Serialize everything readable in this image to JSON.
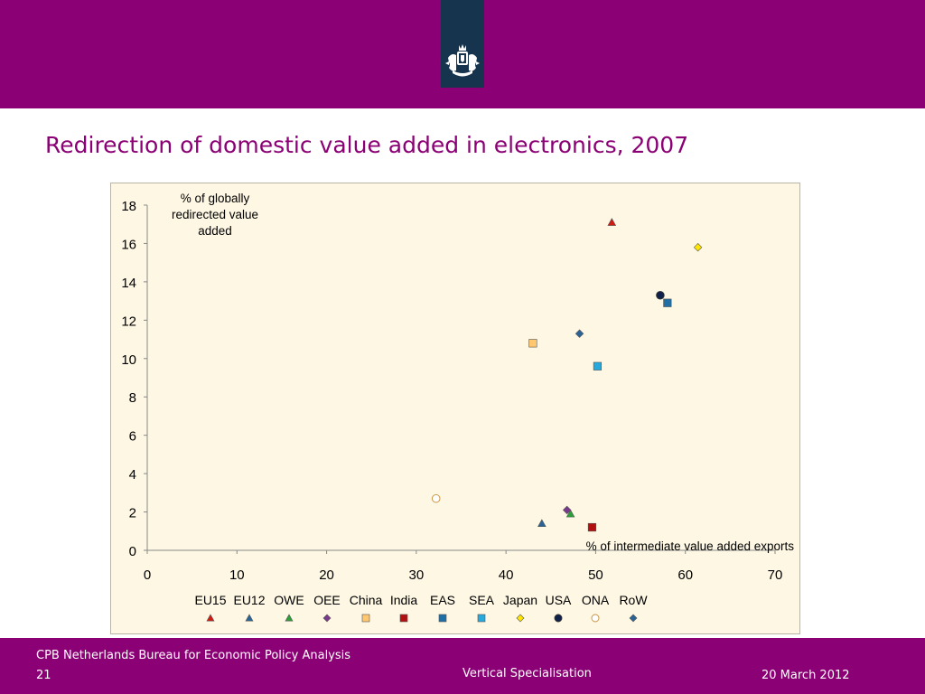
{
  "slide": {
    "title": "Redirection of domestic value added in electronics, 2007"
  },
  "header": {
    "logo": "coat-of-arms-icon"
  },
  "colors": {
    "brand_purple": "#8b0074",
    "logo_tab": "#17344f",
    "chart_background": "#fef7e4"
  },
  "chart_data": {
    "type": "scatter",
    "title": "",
    "ylabel": "% of globally redirected value added",
    "ylabel_lines": [
      "% of globally",
      "redirected value",
      "added"
    ],
    "xlabel": "% of intermediate value added exports",
    "xlim": [
      0,
      70
    ],
    "ylim": [
      0,
      18
    ],
    "xticks": [
      0,
      10,
      20,
      30,
      40,
      50,
      60,
      70
    ],
    "yticks": [
      0,
      2,
      4,
      6,
      8,
      10,
      12,
      14,
      16,
      18
    ],
    "grid": false,
    "legend_position": "bottom",
    "series": [
      {
        "name": "EU15",
        "marker": "triangle",
        "color": "#d11a12",
        "x": 51.8,
        "y": 17.1
      },
      {
        "name": "EU12",
        "marker": "triangle",
        "color": "#2a6496",
        "x": 44.0,
        "y": 1.4
      },
      {
        "name": "OWE",
        "marker": "triangle",
        "color": "#2e9e3a",
        "x": 47.2,
        "y": 1.9
      },
      {
        "name": "OEE",
        "marker": "diamond",
        "color": "#7a3a8c",
        "x": 46.8,
        "y": 2.1
      },
      {
        "name": "China",
        "marker": "square",
        "color": "#ffc870",
        "x": 43.0,
        "y": 10.8
      },
      {
        "name": "India",
        "marker": "square",
        "color": "#b01010",
        "x": 49.6,
        "y": 1.2
      },
      {
        "name": "EAS",
        "marker": "square",
        "color": "#1f6fa6",
        "x": 58.0,
        "y": 12.9
      },
      {
        "name": "SEA",
        "marker": "square",
        "color": "#29a8dc",
        "x": 50.2,
        "y": 9.6
      },
      {
        "name": "Japan",
        "marker": "diamond",
        "color": "#ffe600",
        "x": 61.4,
        "y": 15.8
      },
      {
        "name": "USA",
        "marker": "circle",
        "color": "#10224a",
        "x": 57.2,
        "y": 13.3
      },
      {
        "name": "ONA",
        "marker": "circle",
        "color": "#ffffff",
        "x": 32.2,
        "y": 2.7
      },
      {
        "name": "RoW",
        "marker": "diamond",
        "color": "#2a6496",
        "x": 48.2,
        "y": 11.3
      }
    ]
  },
  "footer": {
    "org": "CPB Netherlands Bureau for Economic Policy Analysis",
    "page": "21",
    "subject": "Vertical Specialisation",
    "date": "20 March 2012"
  }
}
